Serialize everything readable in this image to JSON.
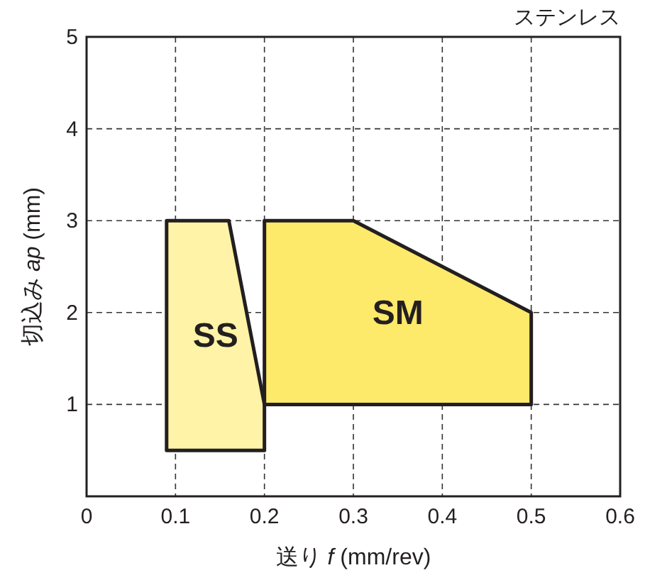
{
  "chart_data": {
    "type": "area",
    "title": "ステンレス",
    "xlabel": "送り *f* (mm/rev)",
    "ylabel": "切込み *ap* (mm)",
    "xlim": [
      0,
      0.6
    ],
    "ylim": [
      0,
      5
    ],
    "xticks": [
      0,
      0.1,
      0.2,
      0.3,
      0.4,
      0.5,
      0.6
    ],
    "yticks": [
      1,
      2,
      3,
      4,
      5
    ],
    "grid": true,
    "legend": false,
    "series": [
      {
        "name": "SS",
        "color": "#fef3a6",
        "x": [
          0.09,
          0.09,
          0.16,
          0.2,
          0.2
        ],
        "values": [
          0.5,
          3,
          3,
          1,
          0.5
        ]
      },
      {
        "name": "SM",
        "color": "#fde96a",
        "x": [
          0.2,
          0.2,
          0.3,
          0.5,
          0.5
        ],
        "values": [
          1,
          3,
          3,
          2,
          1
        ]
      }
    ]
  }
}
